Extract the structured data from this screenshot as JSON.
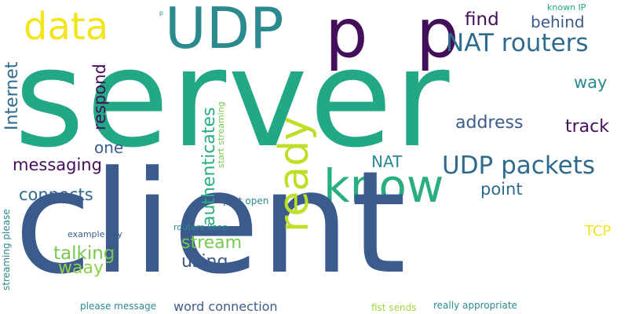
{
  "words": {
    "server": "server",
    "client": "client",
    "udp": "UDP",
    "p1": "p",
    "p2": "p",
    "data": "data",
    "know": "know",
    "ready": "ready",
    "nat_routers": "NAT routers",
    "find": "find",
    "behind": "behind",
    "known_ip": "known IP",
    "way": "way",
    "address": "address",
    "track": "track",
    "udp_packets": "UDP packets",
    "nat": "NAT",
    "point": "point",
    "tcp": "TCP",
    "one": "one",
    "messaging": "messaging",
    "connects": "connects",
    "internet": "Internet",
    "respond": "respond",
    "authenticates": "authenticates",
    "start_streaming": "start streaming",
    "stream": "stream",
    "using": "using",
    "talking": "talking",
    "waay": "waay",
    "port_open": "port open",
    "routers_keep": "routers keep",
    "example_say": "example say",
    "streaming_please": "streaming please",
    "word_connection": "word connection",
    "please_message": "please message",
    "fist_sends": "fist sends",
    "really_appropriate": "really appropriate",
    "tiny_p": "p"
  },
  "colors": {
    "background": "#ffffff",
    "green": "#22a884",
    "blue": "#3b5b8c",
    "teal": "#2a8a8d",
    "purple": "#440f5a",
    "yellow": "#f2e51d",
    "lime": "#bddf26",
    "light_green": "#76c94f"
  }
}
